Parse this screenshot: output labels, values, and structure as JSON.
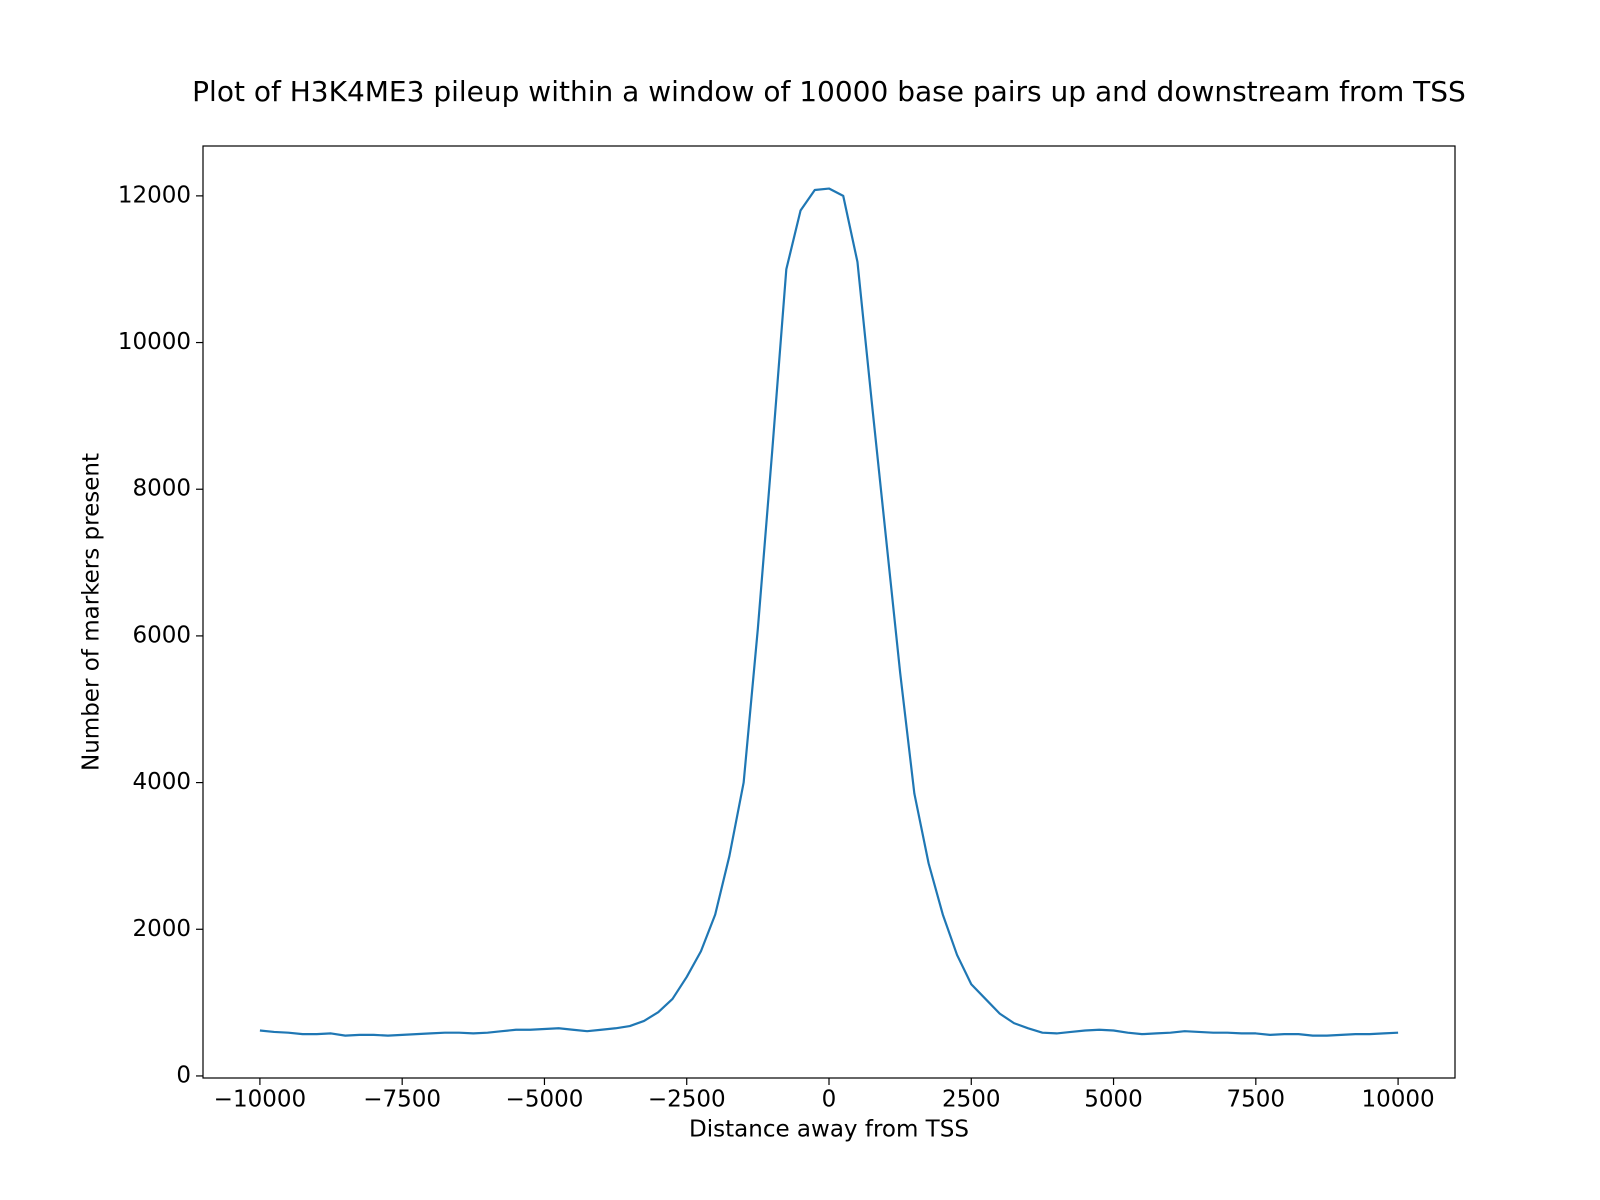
{
  "chart_data": {
    "type": "line",
    "title": "Plot of H3K4ME3 pileup within a window of 10000 base pairs up and downstream from TSS",
    "xlabel": "Distance away from TSS",
    "ylabel": "Number of markers present",
    "x": [
      -10000,
      -9750,
      -9500,
      -9250,
      -9000,
      -8750,
      -8500,
      -8250,
      -8000,
      -7750,
      -7500,
      -7250,
      -7000,
      -6750,
      -6500,
      -6250,
      -6000,
      -5750,
      -5500,
      -5250,
      -5000,
      -4750,
      -4500,
      -4250,
      -4000,
      -3750,
      -3500,
      -3250,
      -3000,
      -2750,
      -2500,
      -2250,
      -2000,
      -1750,
      -1500,
      -1250,
      -1000,
      -750,
      -500,
      -250,
      0,
      250,
      500,
      750,
      1000,
      1250,
      1500,
      1750,
      2000,
      2250,
      2500,
      2750,
      3000,
      3250,
      3500,
      3750,
      4000,
      4250,
      4500,
      4750,
      5000,
      5250,
      5500,
      5750,
      6000,
      6250,
      6500,
      6750,
      7000,
      7250,
      7500,
      7750,
      8000,
      8250,
      8500,
      8750,
      9000,
      9250,
      9500,
      9750,
      10000
    ],
    "series": [
      {
        "name": "H3K4ME3",
        "color": "#1f77b4",
        "values": [
          620,
          600,
          590,
          570,
          570,
          580,
          550,
          560,
          560,
          550,
          560,
          570,
          580,
          590,
          590,
          580,
          590,
          610,
          630,
          630,
          640,
          650,
          630,
          610,
          630,
          650,
          680,
          750,
          870,
          1050,
          1350,
          1700,
          2200,
          3000,
          4000,
          6100,
          8500,
          11000,
          11800,
          12080,
          12100,
          12000,
          11100,
          9200,
          7350,
          5500,
          3850,
          2900,
          2200,
          1650,
          1250,
          1050,
          850,
          720,
          650,
          590,
          580,
          600,
          620,
          630,
          620,
          590,
          570,
          580,
          590,
          610,
          600,
          590,
          590,
          580,
          580,
          560,
          570,
          570,
          550,
          550,
          560,
          570,
          570,
          580,
          590
        ]
      }
    ],
    "xlim": [
      -11000,
      11000
    ],
    "ylim": [
      -28,
      12680
    ],
    "xticks": [
      {
        "value": -10000,
        "label": "−10000"
      },
      {
        "value": -7500,
        "label": "−7500"
      },
      {
        "value": -5000,
        "label": "−5000"
      },
      {
        "value": -2500,
        "label": "−2500"
      },
      0,
      2500,
      5000,
      7500,
      10000
    ],
    "yticks": [
      0,
      2000,
      4000,
      6000,
      8000,
      10000,
      12000
    ],
    "grid": false
  }
}
